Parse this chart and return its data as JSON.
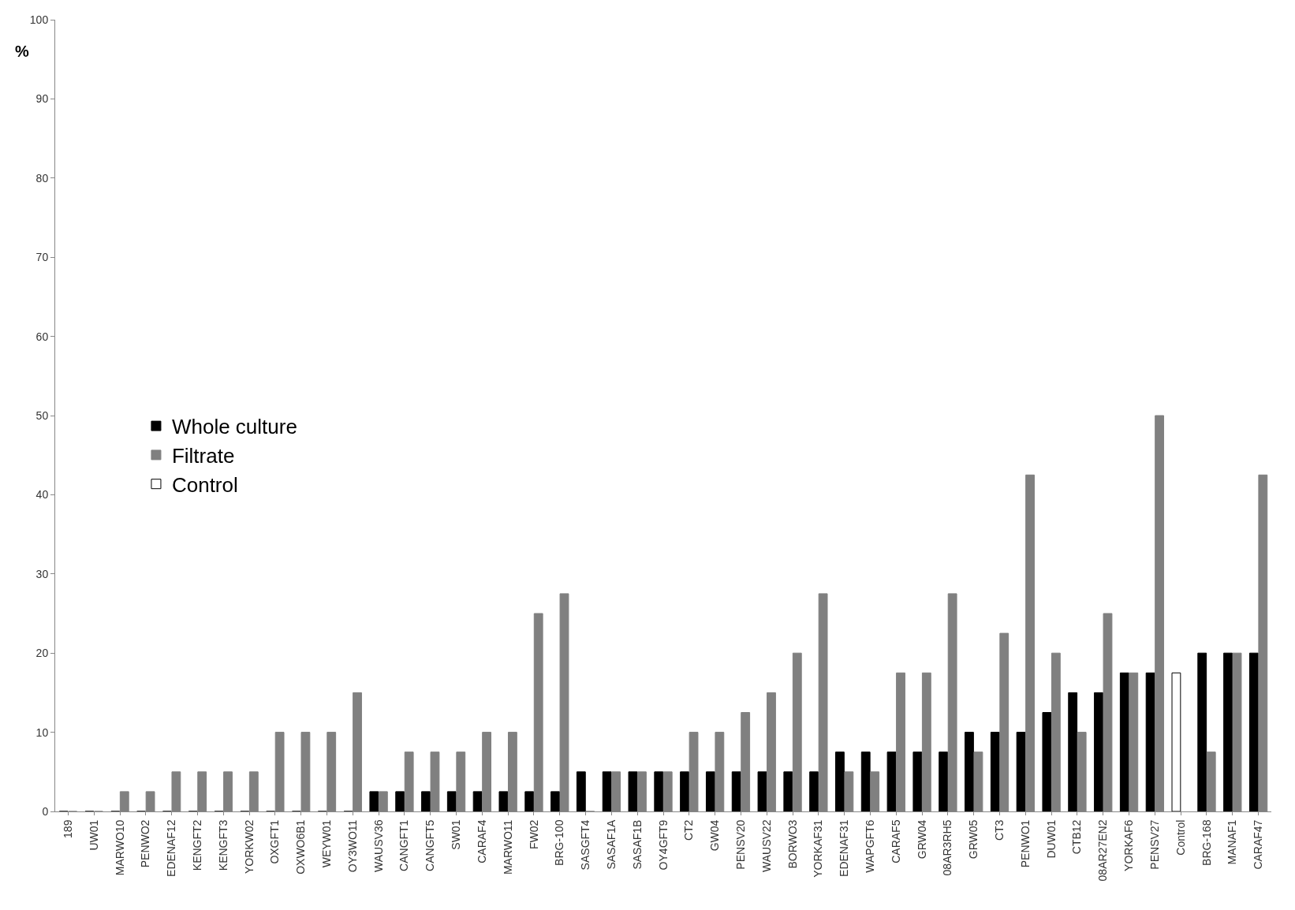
{
  "chart_data": {
    "type": "bar",
    "ylabel": "%",
    "categories": [
      "189",
      "UW01",
      "MARWO10",
      "PENWO2",
      "EDENAF12",
      "KENGFT2",
      "KENGFT3",
      "YORKW02",
      "OXGFT1",
      "OXWO6B1",
      "WEYW01",
      "OY3WO11",
      "WAUSV36",
      "CANGFT1",
      "CANGFT5",
      "SW01",
      "CARAF4",
      "MARWO11",
      "FW02",
      "BRG-100",
      "SASGFT4",
      "SASAF1A",
      "SASAF1B",
      "OY4GFT9",
      "CT2",
      "GW04",
      "PENSV20",
      "WAUSV22",
      "BORWO3",
      "YORKAF31",
      "EDENAF31",
      "WAPGFT6",
      "CARAF5",
      "GRW04",
      "08AR3RH5",
      "GRW05",
      "CT3",
      "PENWO1",
      "DUW01",
      "CTB12",
      "08AR27EN2",
      "YORKAF6",
      "PENSV27",
      "Control",
      "BRG-168",
      "MANAF1",
      "CARAF47"
    ],
    "series": [
      {
        "name": "Whole culture",
        "color": "#000000",
        "values": [
          0,
          0,
          0,
          0,
          0,
          0,
          0,
          0,
          0,
          0,
          0,
          0,
          2.5,
          2.5,
          2.5,
          2.5,
          2.5,
          2.5,
          2.5,
          2.5,
          5,
          5,
          5,
          5,
          5,
          5,
          5,
          5,
          5,
          5,
          7.5,
          7.5,
          7.5,
          7.5,
          7.5,
          10,
          10,
          10,
          12.5,
          15,
          15,
          17.5,
          17.5,
          null,
          20,
          20,
          20
        ]
      },
      {
        "name": "Filtrate",
        "color": "#808080",
        "values": [
          0,
          0,
          2.5,
          2.5,
          5,
          5,
          5,
          5,
          10,
          10,
          10,
          15,
          2.5,
          7.5,
          7.5,
          7.5,
          10,
          10,
          25,
          27.5,
          0,
          5,
          5,
          5,
          10,
          10,
          12.5,
          15,
          20,
          27.5,
          5,
          5,
          17.5,
          17.5,
          27.5,
          7.5,
          22.5,
          42.5,
          20,
          10,
          25,
          17.5,
          50,
          null,
          7.5,
          20,
          42.5
        ]
      },
      {
        "name": "Control",
        "color": "#ffffff",
        "values": [
          null,
          null,
          null,
          null,
          null,
          null,
          null,
          null,
          null,
          null,
          null,
          null,
          null,
          null,
          null,
          null,
          null,
          null,
          null,
          null,
          null,
          null,
          null,
          null,
          null,
          null,
          null,
          null,
          null,
          null,
          null,
          null,
          null,
          null,
          null,
          null,
          null,
          null,
          null,
          null,
          null,
          null,
          null,
          17.5,
          null,
          null,
          null
        ]
      }
    ],
    "ylim": [
      0,
      100
    ],
    "yticks": [
      0,
      10,
      20,
      30,
      40,
      50,
      60,
      70,
      80,
      90,
      100
    ],
    "legend": "left"
  }
}
